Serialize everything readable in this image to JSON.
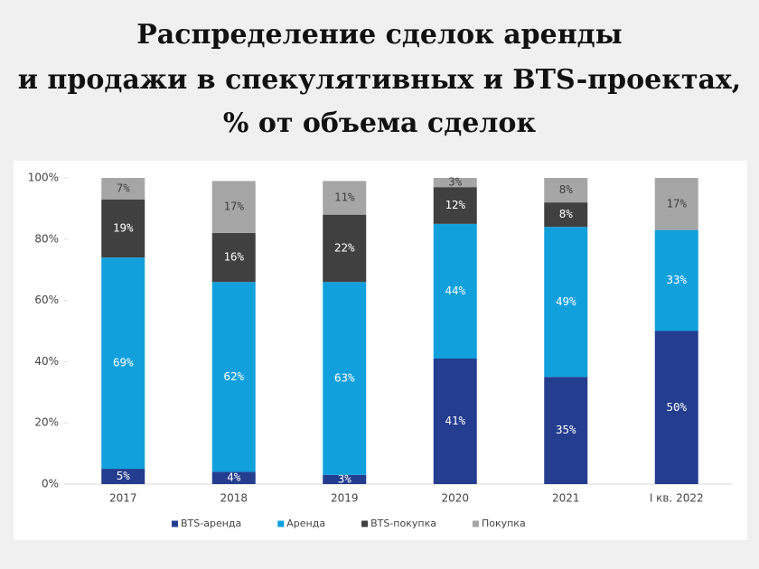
{
  "chart_data": {
    "type": "stacked_bar",
    "title": [
      "Распределение сделок аренды",
      "и продажи в спекулятивных и BTS-проектах,",
      "% от объема сделок"
    ],
    "categories": [
      "2017",
      "2018",
      "2019",
      "2020",
      "2021",
      "I кв. 2022"
    ],
    "series": [
      {
        "name": "BTS-аренда",
        "color": "#253d8f",
        "values": [
          5,
          4,
          3,
          41,
          35,
          50
        ],
        "value_labels": [
          "5%",
          "4%",
          "3%",
          "41%",
          "35%",
          "50%"
        ]
      },
      {
        "name": "Аренда",
        "color": "#12a0dd",
        "values": [
          69,
          62,
          63,
          44,
          49,
          33
        ],
        "value_labels": [
          "69%",
          "62%",
          "63%",
          "44%",
          "49%",
          "33%"
        ]
      },
      {
        "name": "BTS-покупка",
        "color": "#404040",
        "values": [
          19,
          16,
          22,
          12,
          8,
          0
        ],
        "value_labels": [
          "19%",
          "16%",
          "22%",
          "12%",
          "8%",
          null
        ]
      },
      {
        "name": "Покупка",
        "color": "#a6a6a6",
        "values": [
          7,
          17,
          11,
          3,
          8,
          17
        ],
        "value_labels": [
          "7%",
          "17%",
          "11%",
          "3%",
          "8%",
          "17%"
        ]
      }
    ],
    "ylim": [
      0,
      100
    ],
    "yticks": [
      {
        "value": 0,
        "label": "0%"
      },
      {
        "value": 20,
        "label": "20%"
      },
      {
        "value": 40,
        "label": "40%"
      },
      {
        "value": 60,
        "label": "60%"
      },
      {
        "value": 80,
        "label": "80%"
      },
      {
        "value": 100,
        "label": "100%"
      }
    ],
    "legend": "bottom"
  }
}
